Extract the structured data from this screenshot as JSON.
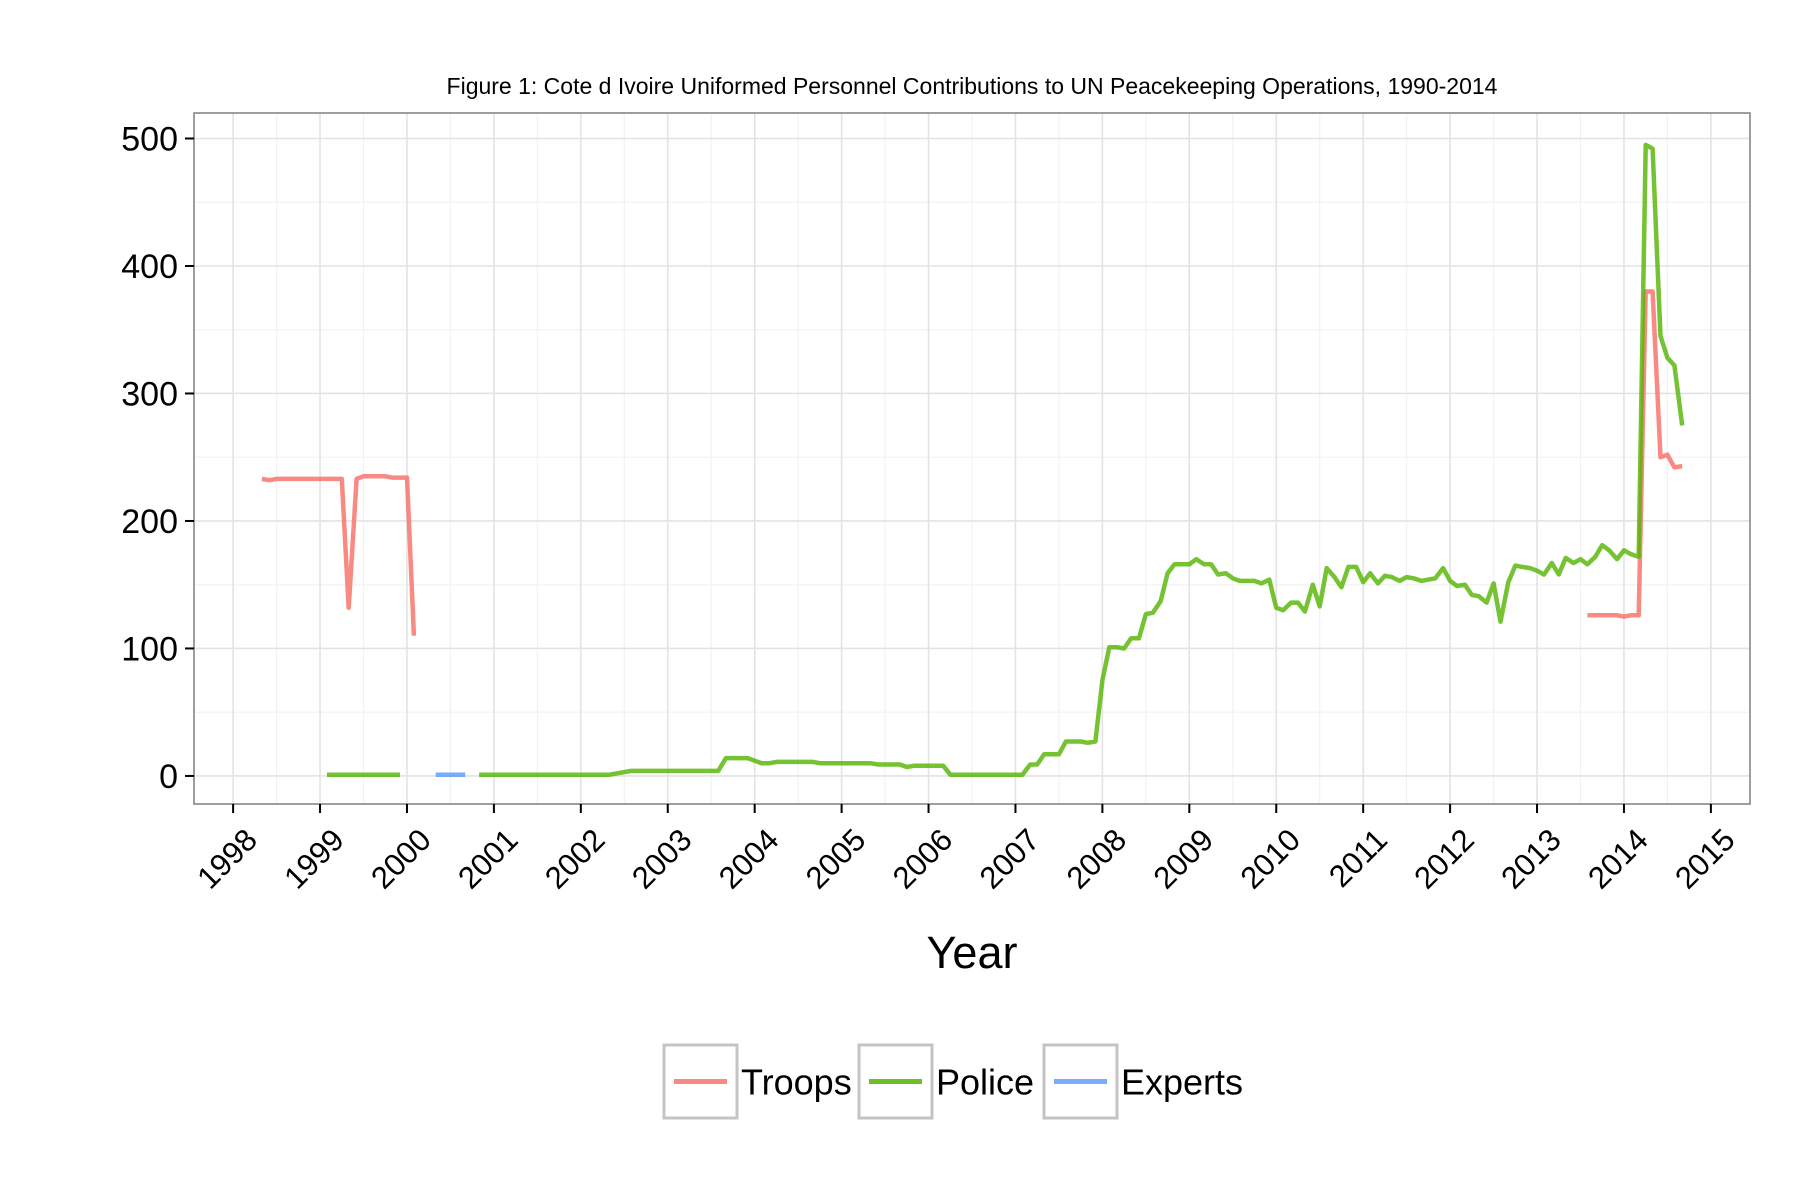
{
  "chart_data": {
    "type": "line",
    "title": "Figure 1: Cote d Ivoire Uniformed Personnel Contributions to UN Peacekeeping Operations, 1990-2014",
    "xlabel": "Year",
    "ylabel": "",
    "xlim": [
      1997.55,
      2015.45
    ],
    "ylim": [
      -22,
      520
    ],
    "x_ticks": [
      1998,
      1999,
      2000,
      2001,
      2002,
      2003,
      2004,
      2005,
      2006,
      2007,
      2008,
      2009,
      2010,
      2011,
      2012,
      2013,
      2014,
      2015
    ],
    "x_tick_labels": [
      "1998",
      "1999",
      "2000",
      "2001",
      "2002",
      "2003",
      "2004",
      "2005",
      "2006",
      "2007",
      "2008",
      "2009",
      "2010",
      "2011",
      "2012",
      "2013",
      "2014",
      "2015"
    ],
    "y_ticks": [
      0,
      100,
      200,
      300,
      400,
      500
    ],
    "y_tick_labels": [
      "0",
      "100",
      "200",
      "300",
      "400",
      "500"
    ],
    "grid": true,
    "legend": {
      "position": "bottom",
      "entries": [
        "Troops",
        "Police",
        "Experts"
      ]
    },
    "series": [
      {
        "name": "Troops",
        "color": "#F8766D",
        "segments": [
          [
            [
              1998.33,
              233
            ],
            [
              1998.42,
              232
            ],
            [
              1998.5,
              233
            ],
            [
              1998.58,
              233
            ],
            [
              1998.67,
              233
            ],
            [
              1998.75,
              233
            ],
            [
              1998.83,
              233
            ],
            [
              1998.92,
              233
            ],
            [
              1999.0,
              233
            ],
            [
              1999.08,
              233
            ],
            [
              1999.17,
              233
            ],
            [
              1999.25,
              233
            ],
            [
              1999.33,
              132
            ],
            [
              1999.42,
              233
            ],
            [
              1999.5,
              235
            ],
            [
              1999.58,
              235
            ],
            [
              1999.67,
              235
            ],
            [
              1999.75,
              235
            ],
            [
              1999.83,
              234
            ],
            [
              1999.92,
              234
            ],
            [
              2000.0,
              234
            ],
            [
              2000.08,
              110
            ]
          ],
          [
            [
              2013.58,
              126
            ],
            [
              2013.67,
              126
            ],
            [
              2013.75,
              126
            ],
            [
              2013.83,
              126
            ],
            [
              2013.92,
              126
            ],
            [
              2014.0,
              125
            ],
            [
              2014.08,
              126
            ],
            [
              2014.17,
              126
            ],
            [
              2014.25,
              380
            ],
            [
              2014.33,
              380
            ],
            [
              2014.42,
              250
            ],
            [
              2014.5,
              252
            ],
            [
              2014.58,
              242
            ],
            [
              2014.67,
              243
            ]
          ]
        ]
      },
      {
        "name": "Police",
        "color": "#53B400",
        "segments": [
          [
            [
              1999.08,
              1
            ],
            [
              1999.17,
              1
            ],
            [
              1999.25,
              1
            ],
            [
              1999.33,
              1
            ],
            [
              1999.42,
              1
            ],
            [
              1999.5,
              1
            ],
            [
              1999.58,
              1
            ],
            [
              1999.67,
              1
            ],
            [
              1999.75,
              1
            ],
            [
              1999.83,
              1
            ],
            [
              1999.92,
              1
            ]
          ],
          [
            [
              2000.83,
              1
            ],
            [
              2000.92,
              1
            ],
            [
              2001.0,
              1
            ],
            [
              2001.17,
              1
            ],
            [
              2001.33,
              1
            ],
            [
              2001.5,
              1
            ],
            [
              2001.67,
              1
            ],
            [
              2001.83,
              1
            ],
            [
              2002.0,
              1
            ],
            [
              2002.17,
              1
            ],
            [
              2002.33,
              1
            ],
            [
              2002.5,
              3
            ],
            [
              2002.58,
              4
            ],
            [
              2002.67,
              4
            ],
            [
              2002.83,
              4
            ],
            [
              2003.0,
              4
            ],
            [
              2003.17,
              4
            ],
            [
              2003.33,
              4
            ],
            [
              2003.5,
              4
            ],
            [
              2003.58,
              4
            ],
            [
              2003.67,
              14
            ],
            [
              2003.75,
              14
            ],
            [
              2003.83,
              14
            ],
            [
              2003.92,
              14
            ],
            [
              2004.0,
              12
            ],
            [
              2004.08,
              10
            ],
            [
              2004.17,
              10
            ],
            [
              2004.25,
              11
            ],
            [
              2004.33,
              11
            ],
            [
              2004.5,
              11
            ],
            [
              2004.67,
              11
            ],
            [
              2004.75,
              10
            ],
            [
              2004.83,
              10
            ],
            [
              2005.0,
              10
            ],
            [
              2005.17,
              10
            ],
            [
              2005.33,
              10
            ],
            [
              2005.42,
              9
            ],
            [
              2005.58,
              9
            ],
            [
              2005.67,
              9
            ],
            [
              2005.75,
              7
            ],
            [
              2005.83,
              8
            ],
            [
              2006.0,
              8
            ],
            [
              2006.08,
              8
            ],
            [
              2006.17,
              8
            ],
            [
              2006.25,
              1
            ],
            [
              2006.42,
              1
            ],
            [
              2006.58,
              1
            ],
            [
              2006.75,
              1
            ],
            [
              2006.92,
              1
            ],
            [
              2007.0,
              1
            ],
            [
              2007.08,
              1
            ],
            [
              2007.17,
              9
            ],
            [
              2007.25,
              9
            ],
            [
              2007.33,
              17
            ],
            [
              2007.42,
              17
            ],
            [
              2007.5,
              17
            ],
            [
              2007.58,
              27
            ],
            [
              2007.67,
              27
            ],
            [
              2007.75,
              27
            ],
            [
              2007.83,
              26
            ],
            [
              2007.92,
              27
            ],
            [
              2008.0,
              75
            ],
            [
              2008.08,
              101
            ],
            [
              2008.17,
              101
            ],
            [
              2008.25,
              100
            ],
            [
              2008.33,
              108
            ],
            [
              2008.42,
              108
            ],
            [
              2008.5,
              127
            ],
            [
              2008.58,
              128
            ],
            [
              2008.67,
              137
            ],
            [
              2008.75,
              159
            ],
            [
              2008.83,
              166
            ],
            [
              2008.92,
              166
            ],
            [
              2009.0,
              166
            ],
            [
              2009.08,
              170
            ],
            [
              2009.17,
              166
            ],
            [
              2009.25,
              166
            ],
            [
              2009.33,
              158
            ],
            [
              2009.42,
              159
            ],
            [
              2009.5,
              155
            ],
            [
              2009.58,
              153
            ],
            [
              2009.67,
              153
            ],
            [
              2009.75,
              153
            ],
            [
              2009.83,
              151
            ],
            [
              2009.92,
              154
            ],
            [
              2010.0,
              132
            ],
            [
              2010.08,
              130
            ],
            [
              2010.17,
              136
            ],
            [
              2010.25,
              136
            ],
            [
              2010.33,
              129
            ],
            [
              2010.42,
              150
            ],
            [
              2010.5,
              133
            ],
            [
              2010.58,
              163
            ],
            [
              2010.67,
              156
            ],
            [
              2010.75,
              148
            ],
            [
              2010.83,
              164
            ],
            [
              2010.92,
              164
            ],
            [
              2011.0,
              152
            ],
            [
              2011.08,
              159
            ],
            [
              2011.17,
              151
            ],
            [
              2011.25,
              157
            ],
            [
              2011.33,
              156
            ],
            [
              2011.42,
              153
            ],
            [
              2011.5,
              156
            ],
            [
              2011.58,
              155
            ],
            [
              2011.67,
              153
            ],
            [
              2011.75,
              154
            ],
            [
              2011.83,
              155
            ],
            [
              2011.92,
              163
            ],
            [
              2012.0,
              153
            ],
            [
              2012.08,
              149
            ],
            [
              2012.17,
              150
            ],
            [
              2012.25,
              142
            ],
            [
              2012.33,
              141
            ],
            [
              2012.42,
              136
            ],
            [
              2012.5,
              151
            ],
            [
              2012.58,
              121
            ],
            [
              2012.67,
              152
            ],
            [
              2012.75,
              165
            ],
            [
              2012.83,
              164
            ],
            [
              2012.92,
              163
            ],
            [
              2013.0,
              161
            ],
            [
              2013.08,
              158
            ],
            [
              2013.17,
              167
            ],
            [
              2013.25,
              158
            ],
            [
              2013.33,
              171
            ],
            [
              2013.42,
              167
            ],
            [
              2013.5,
              170
            ],
            [
              2013.58,
              166
            ],
            [
              2013.67,
              172
            ],
            [
              2013.75,
              181
            ],
            [
              2013.83,
              177
            ],
            [
              2013.92,
              170
            ],
            [
              2014.0,
              177
            ],
            [
              2014.08,
              174
            ],
            [
              2014.17,
              172
            ],
            [
              2014.25,
              495
            ],
            [
              2014.33,
              492
            ],
            [
              2014.42,
              345
            ],
            [
              2014.5,
              328
            ],
            [
              2014.58,
              322
            ],
            [
              2014.67,
              275
            ]
          ]
        ]
      },
      {
        "name": "Experts",
        "color": "#619CFF",
        "segments": [
          [
            [
              2000.33,
              1
            ],
            [
              2000.42,
              1
            ],
            [
              2000.5,
              1
            ],
            [
              2000.58,
              1
            ],
            [
              2000.67,
              1
            ]
          ]
        ]
      }
    ]
  }
}
